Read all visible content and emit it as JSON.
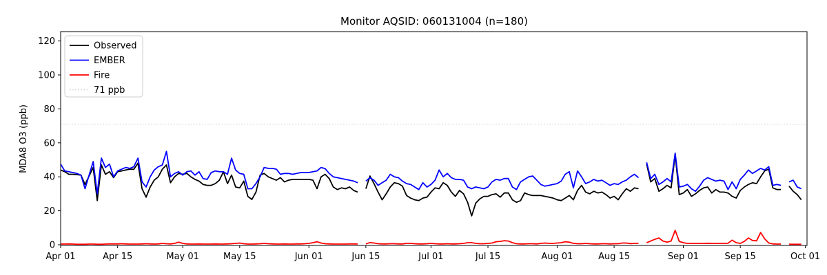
{
  "figure": {
    "title": "Monitor AQSID: 060131004 (n=180)",
    "background": "#ffffff"
  },
  "chart_data": {
    "type": "line",
    "title": "Monitor AQSID: 060131004 (n=180)",
    "xlabel": "",
    "ylabel": "MDA8 O3 (ppb)",
    "n_points": 180,
    "x_unit": "day index from Apr 01 (0 = Apr 01)",
    "xlim": [
      0,
      183.4
    ],
    "ylim": [
      -0.4,
      125.5
    ],
    "yticks": [
      0,
      20,
      40,
      60,
      80,
      100,
      120
    ],
    "xticks": {
      "days": [
        0,
        14,
        30,
        44,
        61,
        75,
        91,
        105,
        122,
        136,
        153,
        167,
        183
      ],
      "labels": [
        "Apr 01",
        "Apr 15",
        "May 01",
        "May 15",
        "Jun 01",
        "Jun 15",
        "Jul 01",
        "Jul 15",
        "Aug 01",
        "Aug 15",
        "Sep 01",
        "Sep 15",
        "Oct 01"
      ]
    },
    "grid": false,
    "legend": {
      "position": "upper-left",
      "entries": [
        {
          "label": "Observed",
          "color": "#000000",
          "style": "solid"
        },
        {
          "label": "EMBER",
          "color": "#0000ff",
          "style": "solid"
        },
        {
          "label": "Fire",
          "color": "#ff0000",
          "style": "solid"
        },
        {
          "label": "71 ppb",
          "color": "#d3d3d3",
          "style": "dotted"
        }
      ]
    },
    "threshold": {
      "label": "71 ppb",
      "value": 71,
      "color": "#d3d3d3",
      "style": "dotted"
    },
    "missing_days": [
      "Jun 14",
      "Aug 22",
      "Sep 26"
    ],
    "series": [
      {
        "name": "Observed",
        "color": "#000000",
        "values": [
          44,
          43,
          41.5,
          41.5,
          41.3,
          41,
          35.5,
          40.5,
          45.5,
          26,
          47,
          41.5,
          43,
          39.5,
          43,
          43.5,
          44,
          44.5,
          44.5,
          48,
          33,
          28,
          34,
          38,
          40,
          44.5,
          47,
          36.5,
          40,
          42,
          41.5,
          42,
          40,
          38.5,
          37.5,
          35.5,
          35,
          35,
          36,
          38,
          43,
          36,
          41,
          34,
          33.5,
          37.5,
          28.5,
          26.7,
          31,
          41,
          42,
          40,
          39,
          38,
          39.5,
          37,
          38,
          38.5,
          38.5,
          38.5,
          38.5,
          38.5,
          38,
          33,
          40,
          41.5,
          39,
          34,
          32.5,
          33.5,
          33,
          34,
          32,
          31,
          null,
          33,
          40.5,
          36,
          31,
          26.5,
          30,
          34,
          36.5,
          36,
          34.5,
          29,
          27.5,
          26.5,
          26,
          27.5,
          28,
          31,
          33.5,
          33,
          36.5,
          35,
          31,
          28.5,
          32,
          30,
          25,
          17,
          24.5,
          27,
          28.5,
          28.5,
          29.5,
          30,
          28,
          30.5,
          30.5,
          26.5,
          25,
          26,
          30.5,
          29.5,
          29,
          29,
          29,
          28.5,
          28,
          27.5,
          26.5,
          26,
          27.5,
          29,
          26.5,
          32,
          35,
          31,
          30,
          31.5,
          30.5,
          31,
          29.5,
          27.5,
          28.5,
          26.5,
          30,
          33,
          31.5,
          33.5,
          33,
          null,
          47.5,
          37,
          39,
          31.5,
          33,
          35,
          33.5,
          53,
          29.5,
          30.5,
          32.5,
          28.5,
          30,
          32,
          33.5,
          34,
          30.5,
          32.5,
          31,
          31,
          30.5,
          28.5,
          27.5,
          32,
          34,
          35.5,
          36.5,
          36,
          40,
          43.5,
          44.5,
          33.5,
          32.5,
          32.5,
          null,
          34.5,
          31.5,
          29.5,
          26.5
        ]
      },
      {
        "name": "EMBER",
        "color": "#0000ff",
        "values": [
          47.5,
          43.5,
          43,
          42.5,
          42,
          41,
          33,
          41,
          49,
          30,
          51,
          45.5,
          47.5,
          40,
          43.5,
          44.5,
          45.5,
          45,
          46,
          51,
          37,
          34,
          40,
          44,
          46,
          47,
          55,
          40,
          42,
          43,
          41,
          43,
          43.5,
          41,
          43,
          39,
          38.5,
          42.5,
          43.5,
          43,
          43,
          41.5,
          51,
          44,
          42,
          41.5,
          33,
          33,
          36,
          40,
          45.5,
          45,
          45,
          44.5,
          41.5,
          42,
          42,
          41.5,
          42,
          42.5,
          42.5,
          42.5,
          43,
          43.5,
          45.5,
          44.8,
          42,
          40,
          39.5,
          39,
          38.5,
          38,
          37.5,
          36.5,
          null,
          37.5,
          39.5,
          38,
          35,
          36.5,
          38,
          41.5,
          40,
          39.5,
          37.5,
          36,
          35.5,
          34,
          32.5,
          36.5,
          34,
          35.5,
          38,
          44,
          40,
          42,
          39.5,
          38.5,
          38.5,
          38,
          34,
          33,
          34,
          33.5,
          33,
          34,
          37,
          38.5,
          38,
          39,
          39,
          34,
          32.5,
          37,
          38.5,
          40,
          40.5,
          38,
          35.5,
          34.5,
          35,
          35.5,
          36,
          37.5,
          41.5,
          43,
          33.5,
          43.5,
          40,
          36,
          37,
          38.5,
          37.5,
          38,
          36.5,
          35,
          36,
          35.5,
          37,
          38,
          40,
          41.5,
          39.5,
          null,
          48.5,
          39,
          41.5,
          35.5,
          37,
          39,
          37,
          54,
          34,
          34.5,
          35.5,
          33,
          31.5,
          34.5,
          38,
          39.5,
          38.5,
          37.5,
          38,
          37.5,
          32.5,
          37,
          33,
          38.5,
          41,
          44,
          42,
          43.5,
          45,
          44,
          46,
          35,
          35.5,
          35,
          null,
          37,
          38,
          34,
          33
        ]
      },
      {
        "name": "Fire",
        "color": "#ff0000",
        "values": [
          0.4,
          0.4,
          0.5,
          0.4,
          0.3,
          0.3,
          0.3,
          0.4,
          0.4,
          0.3,
          0.3,
          0.4,
          0.5,
          0.5,
          0.5,
          0.6,
          0.5,
          0.4,
          0.4,
          0.4,
          0.5,
          0.6,
          0.5,
          0.4,
          0.5,
          0.8,
          0.6,
          0.5,
          0.8,
          1.5,
          0.8,
          0.5,
          0.4,
          0.4,
          0.5,
          0.4,
          0.4,
          0.4,
          0.5,
          0.4,
          0.4,
          0.5,
          0.6,
          0.8,
          1.0,
          0.6,
          0.4,
          0.4,
          0.5,
          0.6,
          0.8,
          0.6,
          0.5,
          0.4,
          0.4,
          0.5,
          0.4,
          0.4,
          0.5,
          0.5,
          0.6,
          0.8,
          1.2,
          1.8,
          1.0,
          0.6,
          0.5,
          0.4,
          0.4,
          0.4,
          0.4,
          0.5,
          0.5,
          0.4,
          null,
          0.5,
          1.3,
          1.0,
          0.6,
          0.5,
          0.5,
          0.6,
          0.6,
          0.5,
          0.5,
          0.8,
          0.8,
          0.6,
          0.5,
          0.5,
          0.6,
          0.8,
          0.6,
          0.5,
          0.5,
          0.6,
          0.5,
          0.5,
          0.6,
          0.8,
          1.2,
          1.2,
          0.8,
          0.6,
          0.6,
          0.8,
          1.0,
          1.8,
          2.0,
          2.4,
          2.2,
          1.2,
          0.6,
          0.5,
          0.5,
          0.6,
          0.6,
          0.5,
          0.8,
          1.0,
          0.8,
          0.8,
          1.0,
          1.2,
          1.8,
          1.5,
          0.8,
          0.6,
          0.6,
          0.8,
          0.6,
          0.5,
          0.5,
          0.6,
          0.6,
          0.5,
          0.6,
          0.6,
          1.0,
          1.0,
          0.7,
          0.8,
          0.8,
          null,
          1.2,
          2.2,
          3.2,
          4.0,
          2.2,
          1.5,
          2.2,
          8.5,
          2.0,
          1.2,
          0.8,
          0.8,
          0.8,
          0.8,
          0.8,
          0.9,
          0.8,
          0.8,
          0.8,
          0.8,
          0.9,
          2.7,
          1.2,
          0.8,
          2.0,
          4.0,
          2.5,
          2.3,
          7.2,
          3.5,
          1.0,
          0.5,
          0.4,
          0.4,
          null,
          0.3,
          0.3,
          0.3,
          0.3
        ]
      }
    ]
  }
}
